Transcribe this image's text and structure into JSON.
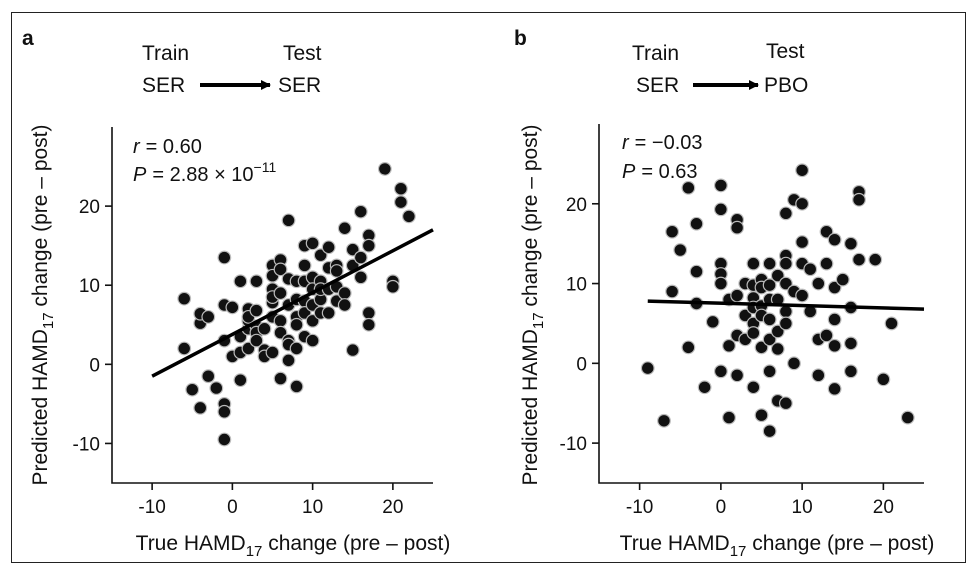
{
  "chart_data": [
    {
      "type": "scatter",
      "panel_label": "a",
      "train_label": "Train",
      "test_label": "Test",
      "train_value": "SER",
      "test_value": "SER",
      "stat_r_symbol": "r",
      "stat_r_value": "= 0.60",
      "stat_p_symbol": "P",
      "stat_p_value": "= 2.88 × 10",
      "stat_p_exponent": "−11",
      "xlabel_main": "True HAMD",
      "xlabel_sub": "17",
      "xlabel_rest": " change (pre – post)",
      "ylabel_main": "Predicted HAMD",
      "ylabel_sub": "17",
      "ylabel_rest": " change (pre – post)",
      "xlim": [
        -15,
        25
      ],
      "ylim": [
        -15,
        30
      ],
      "xticks": [
        -10,
        0,
        10,
        20
      ],
      "yticks": [
        -10,
        0,
        10,
        20
      ],
      "fit_line": [
        [
          -10,
          -1.5
        ],
        [
          25,
          17.0
        ]
      ],
      "points": [
        [
          -6,
          8.3
        ],
        [
          -6,
          2
        ],
        [
          -5,
          -3.2
        ],
        [
          -4,
          5.2
        ],
        [
          -4,
          6.4
        ],
        [
          -4,
          -5.5
        ],
        [
          -3,
          6
        ],
        [
          -3,
          -1.5
        ],
        [
          -2,
          -3
        ],
        [
          -1,
          13.5
        ],
        [
          -1,
          3
        ],
        [
          -1,
          -5
        ],
        [
          -1,
          -6
        ],
        [
          -1,
          -9.5
        ],
        [
          -1,
          7.5
        ],
        [
          0,
          7.2
        ],
        [
          0,
          1
        ],
        [
          1,
          10.5
        ],
        [
          1,
          3.5
        ],
        [
          1,
          1.5
        ],
        [
          1,
          -2
        ],
        [
          2,
          7
        ],
        [
          2,
          4.5
        ],
        [
          2,
          5.5
        ],
        [
          2,
          6
        ],
        [
          2,
          2
        ],
        [
          3,
          4.8
        ],
        [
          3,
          6.8
        ],
        [
          3,
          4
        ],
        [
          3,
          3
        ],
        [
          3,
          10.5
        ],
        [
          4,
          4.5
        ],
        [
          4,
          1.8
        ],
        [
          4,
          1
        ],
        [
          5,
          12.5
        ],
        [
          5,
          11.2
        ],
        [
          5,
          9.5
        ],
        [
          5,
          7.8
        ],
        [
          5,
          8.5
        ],
        [
          5,
          6
        ],
        [
          5,
          1.5
        ],
        [
          6,
          13.2
        ],
        [
          6,
          12
        ],
        [
          6,
          9
        ],
        [
          6,
          5.5
        ],
        [
          6,
          4
        ],
        [
          6,
          -1.8
        ],
        [
          7,
          18.2
        ],
        [
          7,
          10.8
        ],
        [
          7,
          7.5
        ],
        [
          7,
          3
        ],
        [
          7,
          2.5
        ],
        [
          7,
          0.5
        ],
        [
          8,
          10.5
        ],
        [
          8,
          8.2
        ],
        [
          8,
          6
        ],
        [
          8,
          5
        ],
        [
          8,
          2
        ],
        [
          8,
          -2.8
        ],
        [
          9,
          15
        ],
        [
          9,
          12.5
        ],
        [
          9,
          10.5
        ],
        [
          9,
          8
        ],
        [
          9,
          6.5
        ],
        [
          9,
          3.5
        ],
        [
          10,
          15.3
        ],
        [
          10,
          11
        ],
        [
          10,
          9.5
        ],
        [
          10,
          7.5
        ],
        [
          10,
          5.5
        ],
        [
          10,
          3
        ],
        [
          11,
          13.8
        ],
        [
          11,
          10.5
        ],
        [
          11,
          8.2
        ],
        [
          11,
          9.5
        ],
        [
          11,
          6.5
        ],
        [
          12,
          14.8
        ],
        [
          12,
          12.2
        ],
        [
          12,
          9.5
        ],
        [
          12,
          6.5
        ],
        [
          13,
          12.5
        ],
        [
          13,
          11.8
        ],
        [
          13,
          9.8
        ],
        [
          13,
          8
        ],
        [
          14,
          17.2
        ],
        [
          14,
          9
        ],
        [
          14,
          7.5
        ],
        [
          15,
          14.5
        ],
        [
          15,
          12.5
        ],
        [
          15,
          1.8
        ],
        [
          16,
          19.3
        ],
        [
          16,
          13.5
        ],
        [
          16,
          11
        ],
        [
          17,
          16.3
        ],
        [
          17,
          15
        ],
        [
          17,
          6.5
        ],
        [
          17,
          5
        ],
        [
          19,
          24.7
        ],
        [
          20,
          10.5
        ],
        [
          20,
          9.8
        ],
        [
          21,
          22.2
        ],
        [
          21,
          20.5
        ],
        [
          22,
          18.7
        ]
      ]
    },
    {
      "type": "scatter",
      "panel_label": "b",
      "train_label": "Train",
      "test_label": "Test",
      "train_value": "SER",
      "test_value": "PBO",
      "stat_r_symbol": "r",
      "stat_r_value": "= −0.03",
      "stat_p_symbol": "P",
      "stat_p_value": "= 0.63",
      "xlabel_main": "True HAMD",
      "xlabel_sub": "17",
      "xlabel_rest": " change (pre – post)",
      "ylabel_main": "Predicted HAMD",
      "ylabel_sub": "17",
      "ylabel_rest": " change (pre – post)",
      "xlim": [
        -15,
        25
      ],
      "ylim": [
        -15,
        30
      ],
      "xticks": [
        -10,
        0,
        10,
        20
      ],
      "yticks": [
        -10,
        0,
        10,
        20
      ],
      "fit_line": [
        [
          -9,
          7.8
        ],
        [
          25,
          6.8
        ]
      ],
      "points": [
        [
          -9,
          -0.6
        ],
        [
          -7,
          -7.2
        ],
        [
          -6,
          9
        ],
        [
          -6,
          16.5
        ],
        [
          -5,
          14.2
        ],
        [
          -4,
          22
        ],
        [
          -4,
          2
        ],
        [
          -3,
          17.5
        ],
        [
          -3,
          11.5
        ],
        [
          -3,
          7.5
        ],
        [
          -2,
          -3
        ],
        [
          -1,
          5.2
        ],
        [
          0,
          22.3
        ],
        [
          0,
          19.3
        ],
        [
          0,
          12.5
        ],
        [
          0,
          11.2
        ],
        [
          0,
          10
        ],
        [
          0,
          -1
        ],
        [
          1,
          8
        ],
        [
          1,
          2.2
        ],
        [
          1,
          -6.8
        ],
        [
          2,
          18
        ],
        [
          2,
          17
        ],
        [
          2,
          8.5
        ],
        [
          2,
          3.5
        ],
        [
          2,
          -1.5
        ],
        [
          3,
          10
        ],
        [
          3,
          6
        ],
        [
          3,
          3
        ],
        [
          4,
          12.5
        ],
        [
          4,
          9.8
        ],
        [
          4,
          8.2
        ],
        [
          4,
          7
        ],
        [
          4,
          5
        ],
        [
          4,
          3.8
        ],
        [
          4,
          -3
        ],
        [
          5,
          10.5
        ],
        [
          5,
          9.5
        ],
        [
          5,
          7.2
        ],
        [
          5,
          6
        ],
        [
          5,
          2
        ],
        [
          5,
          -6.5
        ],
        [
          6,
          12.5
        ],
        [
          6,
          9.8
        ],
        [
          6,
          8
        ],
        [
          6,
          5.5
        ],
        [
          6,
          3
        ],
        [
          6,
          -1
        ],
        [
          6,
          -8.5
        ],
        [
          7,
          11
        ],
        [
          7,
          8
        ],
        [
          7,
          4
        ],
        [
          7,
          1.8
        ],
        [
          7,
          -4.7
        ],
        [
          8,
          18.8
        ],
        [
          8,
          13.5
        ],
        [
          8,
          12.5
        ],
        [
          8,
          10
        ],
        [
          8,
          6.5
        ],
        [
          8,
          5
        ],
        [
          8,
          -5
        ],
        [
          9,
          20.5
        ],
        [
          9,
          9
        ],
        [
          9,
          0
        ],
        [
          10,
          24.2
        ],
        [
          10,
          20
        ],
        [
          10,
          15.2
        ],
        [
          10,
          12.5
        ],
        [
          10,
          8.5
        ],
        [
          11,
          11.8
        ],
        [
          11,
          6.5
        ],
        [
          12,
          10
        ],
        [
          12,
          3
        ],
        [
          12,
          -1.5
        ],
        [
          13,
          16.5
        ],
        [
          13,
          12.5
        ],
        [
          13,
          3.5
        ],
        [
          14,
          15.5
        ],
        [
          14,
          9.5
        ],
        [
          14,
          5.5
        ],
        [
          14,
          2.2
        ],
        [
          14,
          -3.2
        ],
        [
          15,
          10.5
        ],
        [
          16,
          15
        ],
        [
          16,
          7
        ],
        [
          16,
          2.5
        ],
        [
          16,
          -1
        ],
        [
          17,
          21.5
        ],
        [
          17,
          20.5
        ],
        [
          17,
          13
        ],
        [
          19,
          13
        ],
        [
          20,
          -2
        ],
        [
          21,
          5
        ],
        [
          23,
          -6.8
        ]
      ]
    }
  ]
}
